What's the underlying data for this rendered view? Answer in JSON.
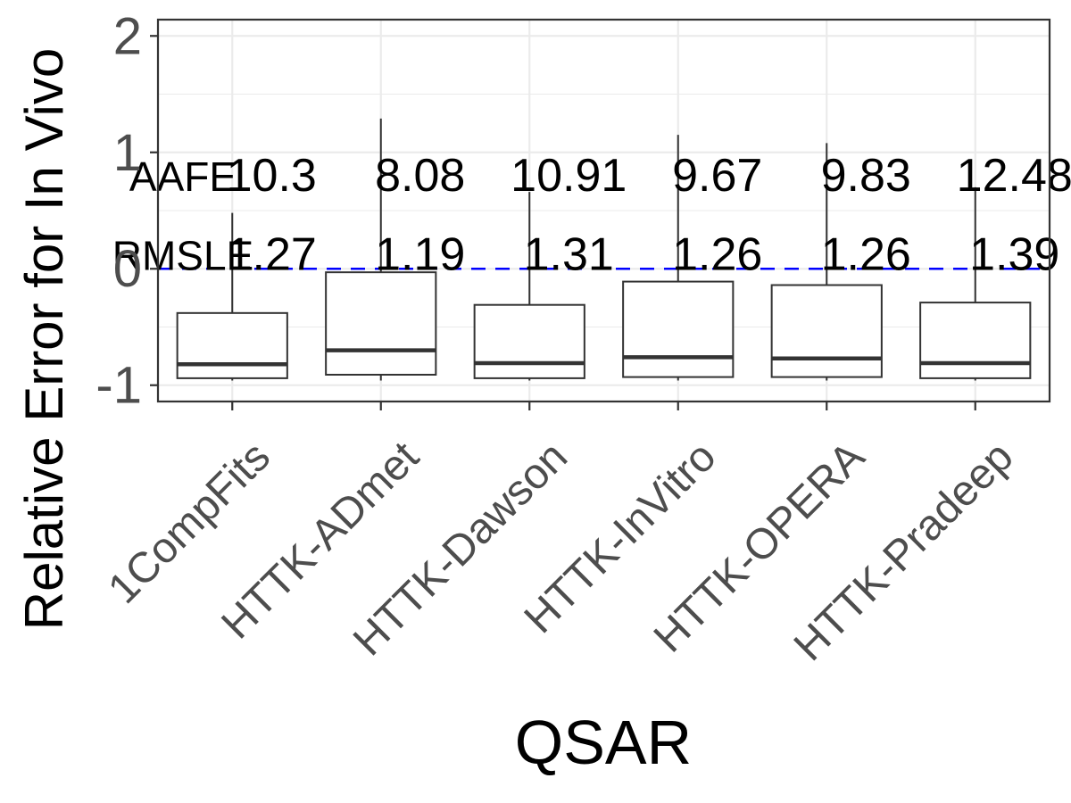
{
  "chart_data": {
    "type": "box",
    "xlabel": "QSAR",
    "ylabel": "Relative Error for In Vivo",
    "ylim": [
      -1.14,
      2.14
    ],
    "yticks": [
      "-1",
      "0",
      "1",
      "2"
    ],
    "grid": true,
    "reference_line": {
      "y": 0,
      "color": "#0000ff",
      "style": "dashed"
    },
    "categories": [
      "1CompFits",
      "HTTK-ADmet",
      "HTTK-Dawson",
      "HTTK-InVitro",
      "HTTK-OPERA",
      "HTTK-Pradeep"
    ],
    "boxes": [
      {
        "category": "1CompFits",
        "whisker_low": -0.96,
        "q1": -0.94,
        "median": -0.82,
        "q3": -0.38,
        "whisker_high": 0.48
      },
      {
        "category": "HTTK-ADmet",
        "whisker_low": -0.96,
        "q1": -0.91,
        "median": -0.7,
        "q3": -0.03,
        "whisker_high": 1.29
      },
      {
        "category": "HTTK-Dawson",
        "whisker_low": -0.96,
        "q1": -0.94,
        "median": -0.81,
        "q3": -0.31,
        "whisker_high": 0.66
      },
      {
        "category": "HTTK-InVitro",
        "whisker_low": -0.96,
        "q1": -0.93,
        "median": -0.76,
        "q3": -0.11,
        "whisker_high": 1.15
      },
      {
        "category": "HTTK-OPERA",
        "whisker_low": -0.96,
        "q1": -0.93,
        "median": -0.77,
        "q3": -0.14,
        "whisker_high": 1.08
      },
      {
        "category": "HTTK-Pradeep",
        "whisker_low": -0.96,
        "q1": -0.94,
        "median": -0.81,
        "q3": -0.29,
        "whisker_high": 0.7
      }
    ],
    "annotations": {
      "row_labels": [
        {
          "text": "AAFE",
          "y": 0.8
        },
        {
          "text": "RMSLE",
          "y": 0.12
        }
      ],
      "aafe": [
        "10.3",
        "8.08",
        "10.91",
        "9.67",
        "9.83",
        "12.48"
      ],
      "rmsle": [
        "1.27",
        "1.19",
        "1.31",
        "1.26",
        "1.26",
        "1.39"
      ]
    }
  }
}
